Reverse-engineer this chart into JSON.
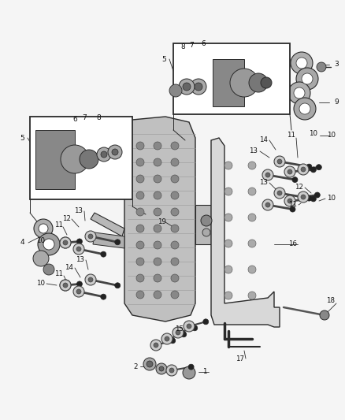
{
  "bg_color": "#f5f5f5",
  "fig_width": 4.38,
  "fig_height": 5.33,
  "dpi": 100,
  "lc": "#2a2a2a",
  "fc_body": "#b8b8b8",
  "fc_plate": "#d0d0d0",
  "fc_dark": "#555555",
  "fc_mid": "#888888",
  "fc_light": "#cccccc"
}
